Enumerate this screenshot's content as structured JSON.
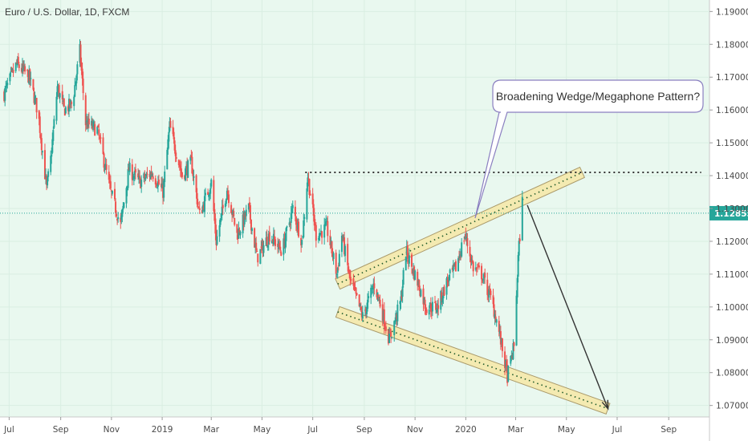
{
  "header": {
    "symbol_title": "Euro / U.S. Dollar, 1D, FXCM"
  },
  "colors": {
    "background": "#e9f8ef",
    "axis_bg": "#ffffff",
    "up": "#26a69a",
    "down": "#ef5350",
    "grid": "#d9eee2",
    "channel_fill": "#f6e7a6",
    "channel_stroke": "#a9996a",
    "dotted": "#1f5a2a",
    "current_price": "#26a69a",
    "callout_border": "#8a7fc0",
    "arrow": "#333333"
  },
  "chart_data": {
    "type": "candlestick",
    "title": "Euro / U.S. Dollar, 1D, FXCM",
    "y_axis": {
      "ticks": [
        "1.19000",
        "1.18000",
        "1.17000",
        "1.16000",
        "1.15000",
        "1.14000",
        "1.13000",
        "1.12000",
        "1.11000",
        "1.10000",
        "1.09000",
        "1.08000",
        "1.07000"
      ],
      "range": [
        1.0665,
        1.1935
      ]
    },
    "x_axis": {
      "ticks": [
        "Jul",
        "Sep",
        "Nov",
        "2019",
        "Mar",
        "May",
        "Jul",
        "Sep",
        "Nov",
        "2020",
        "Mar",
        "May",
        "Jul",
        "Sep"
      ],
      "range": [
        "2018-06-20",
        "2020-10-20"
      ]
    },
    "current_price": {
      "value": 1.12855,
      "label": "1.12855"
    },
    "resistance_level": {
      "value": 1.141,
      "label": "",
      "from": "2019-06-22",
      "to": "2020-10-10"
    },
    "price_path": [
      [
        "2018-06-25",
        1.165
      ],
      [
        "2018-07-10",
        1.174
      ],
      [
        "2018-07-25",
        1.17
      ],
      [
        "2018-08-05",
        1.159
      ],
      [
        "2018-08-15",
        1.136
      ],
      [
        "2018-08-20",
        1.145
      ],
      [
        "2018-08-28",
        1.167
      ],
      [
        "2018-09-05",
        1.16
      ],
      [
        "2018-09-15",
        1.162
      ],
      [
        "2018-09-24",
        1.178
      ],
      [
        "2018-10-01",
        1.156
      ],
      [
        "2018-10-15",
        1.154
      ],
      [
        "2018-10-31",
        1.135
      ],
      [
        "2018-11-12",
        1.125
      ],
      [
        "2018-11-22",
        1.142
      ],
      [
        "2018-12-05",
        1.138
      ],
      [
        "2018-12-20",
        1.141
      ],
      [
        "2019-01-02",
        1.135
      ],
      [
        "2019-01-10",
        1.155
      ],
      [
        "2019-01-25",
        1.14
      ],
      [
        "2019-02-05",
        1.144
      ],
      [
        "2019-02-15",
        1.128
      ],
      [
        "2019-03-01",
        1.138
      ],
      [
        "2019-03-07",
        1.12
      ],
      [
        "2019-03-20",
        1.136
      ],
      [
        "2019-04-01",
        1.122
      ],
      [
        "2019-04-15",
        1.13
      ],
      [
        "2019-04-25",
        1.115
      ],
      [
        "2019-05-10",
        1.122
      ],
      [
        "2019-05-25",
        1.117
      ],
      [
        "2019-06-07",
        1.13
      ],
      [
        "2019-06-18",
        1.12
      ],
      [
        "2019-06-25",
        1.14
      ],
      [
        "2019-07-05",
        1.122
      ],
      [
        "2019-07-18",
        1.124
      ],
      [
        "2019-07-30",
        1.11
      ],
      [
        "2019-08-05",
        1.122
      ],
      [
        "2019-08-15",
        1.108
      ],
      [
        "2019-08-30",
        1.097
      ],
      [
        "2019-09-13",
        1.107
      ],
      [
        "2019-09-20",
        1.101
      ],
      [
        "2019-10-01",
        1.09
      ],
      [
        "2019-10-15",
        1.102
      ],
      [
        "2019-10-21",
        1.117
      ],
      [
        "2019-11-05",
        1.107
      ],
      [
        "2019-11-14",
        1.1
      ],
      [
        "2019-11-28",
        1.1
      ],
      [
        "2019-12-10",
        1.108
      ],
      [
        "2019-12-20",
        1.112
      ],
      [
        "2019-12-31",
        1.122
      ],
      [
        "2020-01-10",
        1.112
      ],
      [
        "2020-01-20",
        1.11
      ],
      [
        "2020-02-01",
        1.102
      ],
      [
        "2020-02-08",
        1.095
      ],
      [
        "2020-02-20",
        1.079
      ],
      [
        "2020-02-28",
        1.088
      ],
      [
        "2020-03-04",
        1.115
      ],
      [
        "2020-03-09",
        1.132
      ]
    ],
    "annotations": {
      "callout_text": "Broadening Wedge/Megaphone Pattern?",
      "upper_channel": {
        "from": [
          "2019-07-31",
          1.107
        ],
        "to": [
          "2020-05-20",
          1.141
        ]
      },
      "lower_channel": {
        "from": [
          "2019-07-31",
          1.0985
        ],
        "to": [
          "2020-06-20",
          1.069
        ]
      },
      "projection_arrow": {
        "from": [
          "2020-03-15",
          1.131
        ],
        "to": [
          "2020-06-20",
          1.069
        ]
      }
    }
  }
}
